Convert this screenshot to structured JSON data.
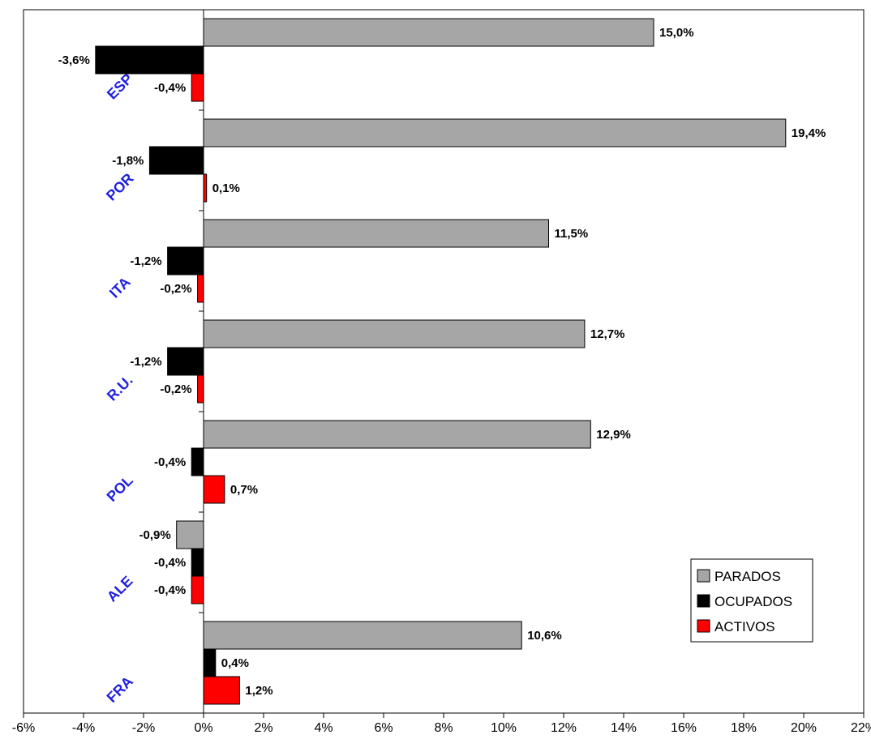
{
  "chart_data": {
    "type": "bar",
    "orientation": "horizontal",
    "categories": [
      "ESP",
      "POR",
      "ITA",
      "R.U.",
      "POL",
      "ALE",
      "FRA"
    ],
    "series": [
      {
        "name": "PARADOS",
        "color": "#a6a6a6",
        "values": [
          15.0,
          19.4,
          11.5,
          12.7,
          12.9,
          -0.9,
          10.6
        ],
        "labels": [
          "15,0%",
          "19,4%",
          "11,5%",
          "12,7%",
          "12,9%",
          "-0,9%",
          "10,6%"
        ]
      },
      {
        "name": "OCUPADOS",
        "color": "#000000",
        "values": [
          -3.6,
          -1.8,
          -1.2,
          -1.2,
          -0.4,
          -0.4,
          0.4
        ],
        "labels": [
          "-3,6%",
          "-1,8%",
          "-1,2%",
          "-1,2%",
          "-0,4%",
          "-0,4%",
          "0,4%"
        ]
      },
      {
        "name": "ACTIVOS",
        "color": "#ff0000",
        "values": [
          -0.4,
          0.1,
          -0.2,
          -0.2,
          0.7,
          -0.4,
          1.2
        ],
        "labels": [
          "-0,4%",
          "0,1%",
          "-0,2%",
          "-0,2%",
          "0,7%",
          "-0,4%",
          "1,2%"
        ]
      }
    ],
    "x_ticks": [
      "-6%",
      "-4%",
      "-2%",
      "0%",
      "2%",
      "4%",
      "6%",
      "8%",
      "10%",
      "12%",
      "14%",
      "16%",
      "18%",
      "20%",
      "22%"
    ],
    "xlim": [
      -6,
      22
    ],
    "category_label_color": "#1f1fe0",
    "title": "",
    "xlabel": "",
    "ylabel": "",
    "grid": false,
    "legend_position": "bottom-right"
  }
}
